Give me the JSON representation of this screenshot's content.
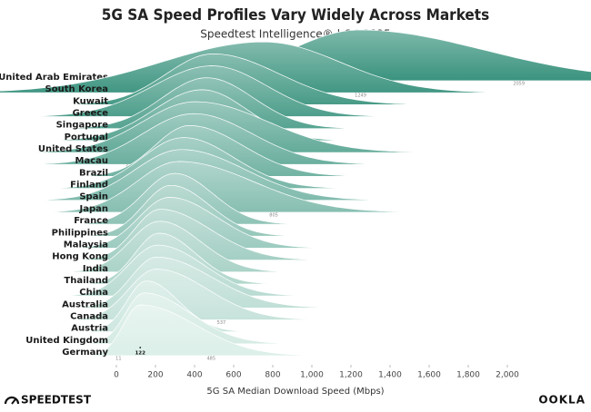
{
  "chart_data": {
    "type": "ridgeline",
    "title": "5G SA Speed Profiles Vary Widely Across Markets",
    "subtitle": "Speedtest Intelligence® | Q4 2025",
    "x_label": "5G SA Median Download Speed (Mbps)",
    "categories": [
      "United Arab Emirates",
      "South Korea",
      "Kuwait",
      "Greece",
      "Singapore",
      "Portugal",
      "United States",
      "Macau",
      "Brazil",
      "Finland",
      "Spain",
      "Japan",
      "France",
      "Philippines",
      "Malaysia",
      "Hong Kong",
      "India",
      "Thailand",
      "China",
      "Australia",
      "Canada",
      "Austria",
      "United Kingdom",
      "Germany"
    ],
    "values": [
      1240,
      757,
      495,
      489,
      462,
      438,
      404,
      395,
      374,
      343,
      332,
      320,
      298,
      279,
      270,
      224,
      222,
      219,
      212,
      206,
      204,
      154,
      142,
      122
    ],
    "low_values": [
      null,
      88,
      189,
      106,
      171,
      124,
      59,
      63,
      147,
      73,
      32,
      45,
      95,
      98,
      72,
      56,
      27,
      61,
      19,
      38,
      24,
      26,
      21,
      11
    ],
    "high_values": [
      2059,
      1249,
      928,
      848,
      767,
      734,
      879,
      778,
      724,
      673,
      750,
      805,
      546,
      533,
      585,
      552,
      487,
      456,
      515,
      566,
      537,
      364,
      443,
      485
    ],
    "colors": [
      "#3a937e",
      "#dcefe9"
    ],
    "xlim": [
      0,
      2100
    ],
    "xticks": [
      0,
      200,
      400,
      600,
      800,
      {
        "value": 1000,
        "label": "1,000"
      },
      {
        "value": 1200,
        "label": "1,200"
      },
      {
        "value": 1400,
        "label": "1,400"
      },
      {
        "value": 1600,
        "label": "1,600"
      },
      {
        "value": 1800,
        "label": "1,800"
      },
      {
        "value": 2000,
        "label": "2,000"
      }
    ]
  },
  "footer": {
    "left": "SPEEDTEST",
    "right": "OOKLA"
  }
}
